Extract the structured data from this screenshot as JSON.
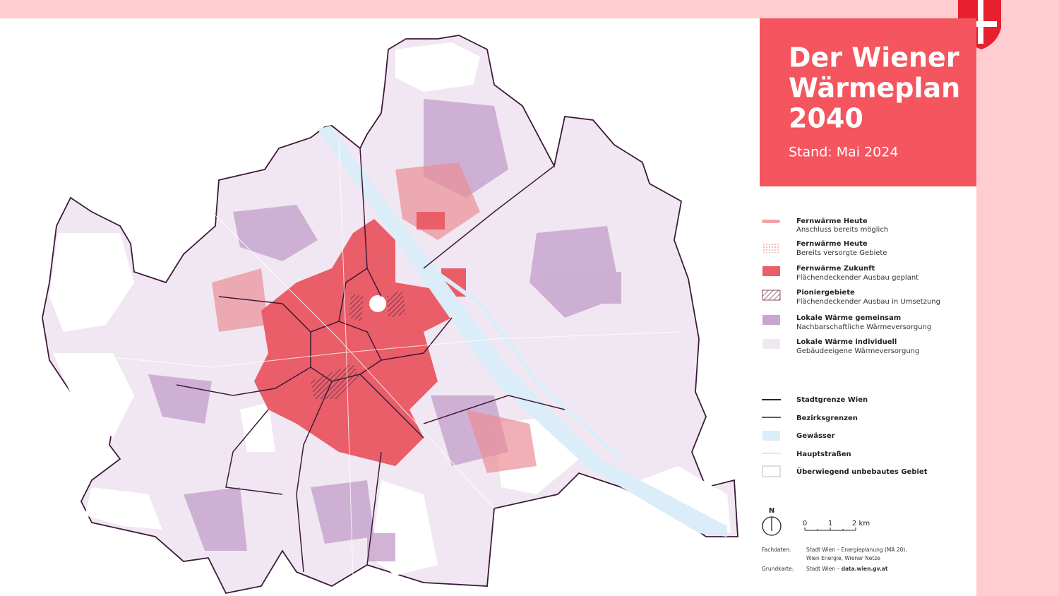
{
  "header": {
    "title_lines": [
      "Der Wiener",
      "Wärmeplan",
      "2040"
    ],
    "subtitle": "Stand: Mai 2024"
  },
  "legend": {
    "areas": [
      {
        "title": "Fernwärme Heute",
        "description": "Anschluss bereits möglich"
      },
      {
        "title": "Fernwärme Heute",
        "description": "Bereits versorgte Gebiete"
      },
      {
        "title": "Fernwärme Zukunft",
        "description": "Flächendeckender Ausbau geplant"
      },
      {
        "title": "Pioniergebiete",
        "description": "Flächendeckender Ausbau in Umsetzung"
      },
      {
        "title": "Lokale Wärme gemeinsam",
        "description": "Nachbarschaftliche Wärmeversorgung"
      },
      {
        "title": "Lokale Wärme individuell",
        "description": "Gebäudeeigene Wärmeversorgung"
      }
    ],
    "lines": [
      "Stadtgrenze Wien",
      "Bezirksgrenzen",
      "Gewässer",
      "Hauptstraßen",
      "Überwiegend unbebautes Gebiet"
    ]
  },
  "north": "N",
  "scale": [
    "0",
    "1",
    "2 km"
  ],
  "credits": [
    {
      "label": "Fachdaten:",
      "lines": [
        "Stadt Wien – Energieplanung (MA 20),",
        "Wien Energie, Wiener Netze"
      ]
    },
    {
      "label": "Grundkarte:",
      "prefix": "Stadt Wien – ",
      "bold": "data.wien.gv.at"
    }
  ]
}
